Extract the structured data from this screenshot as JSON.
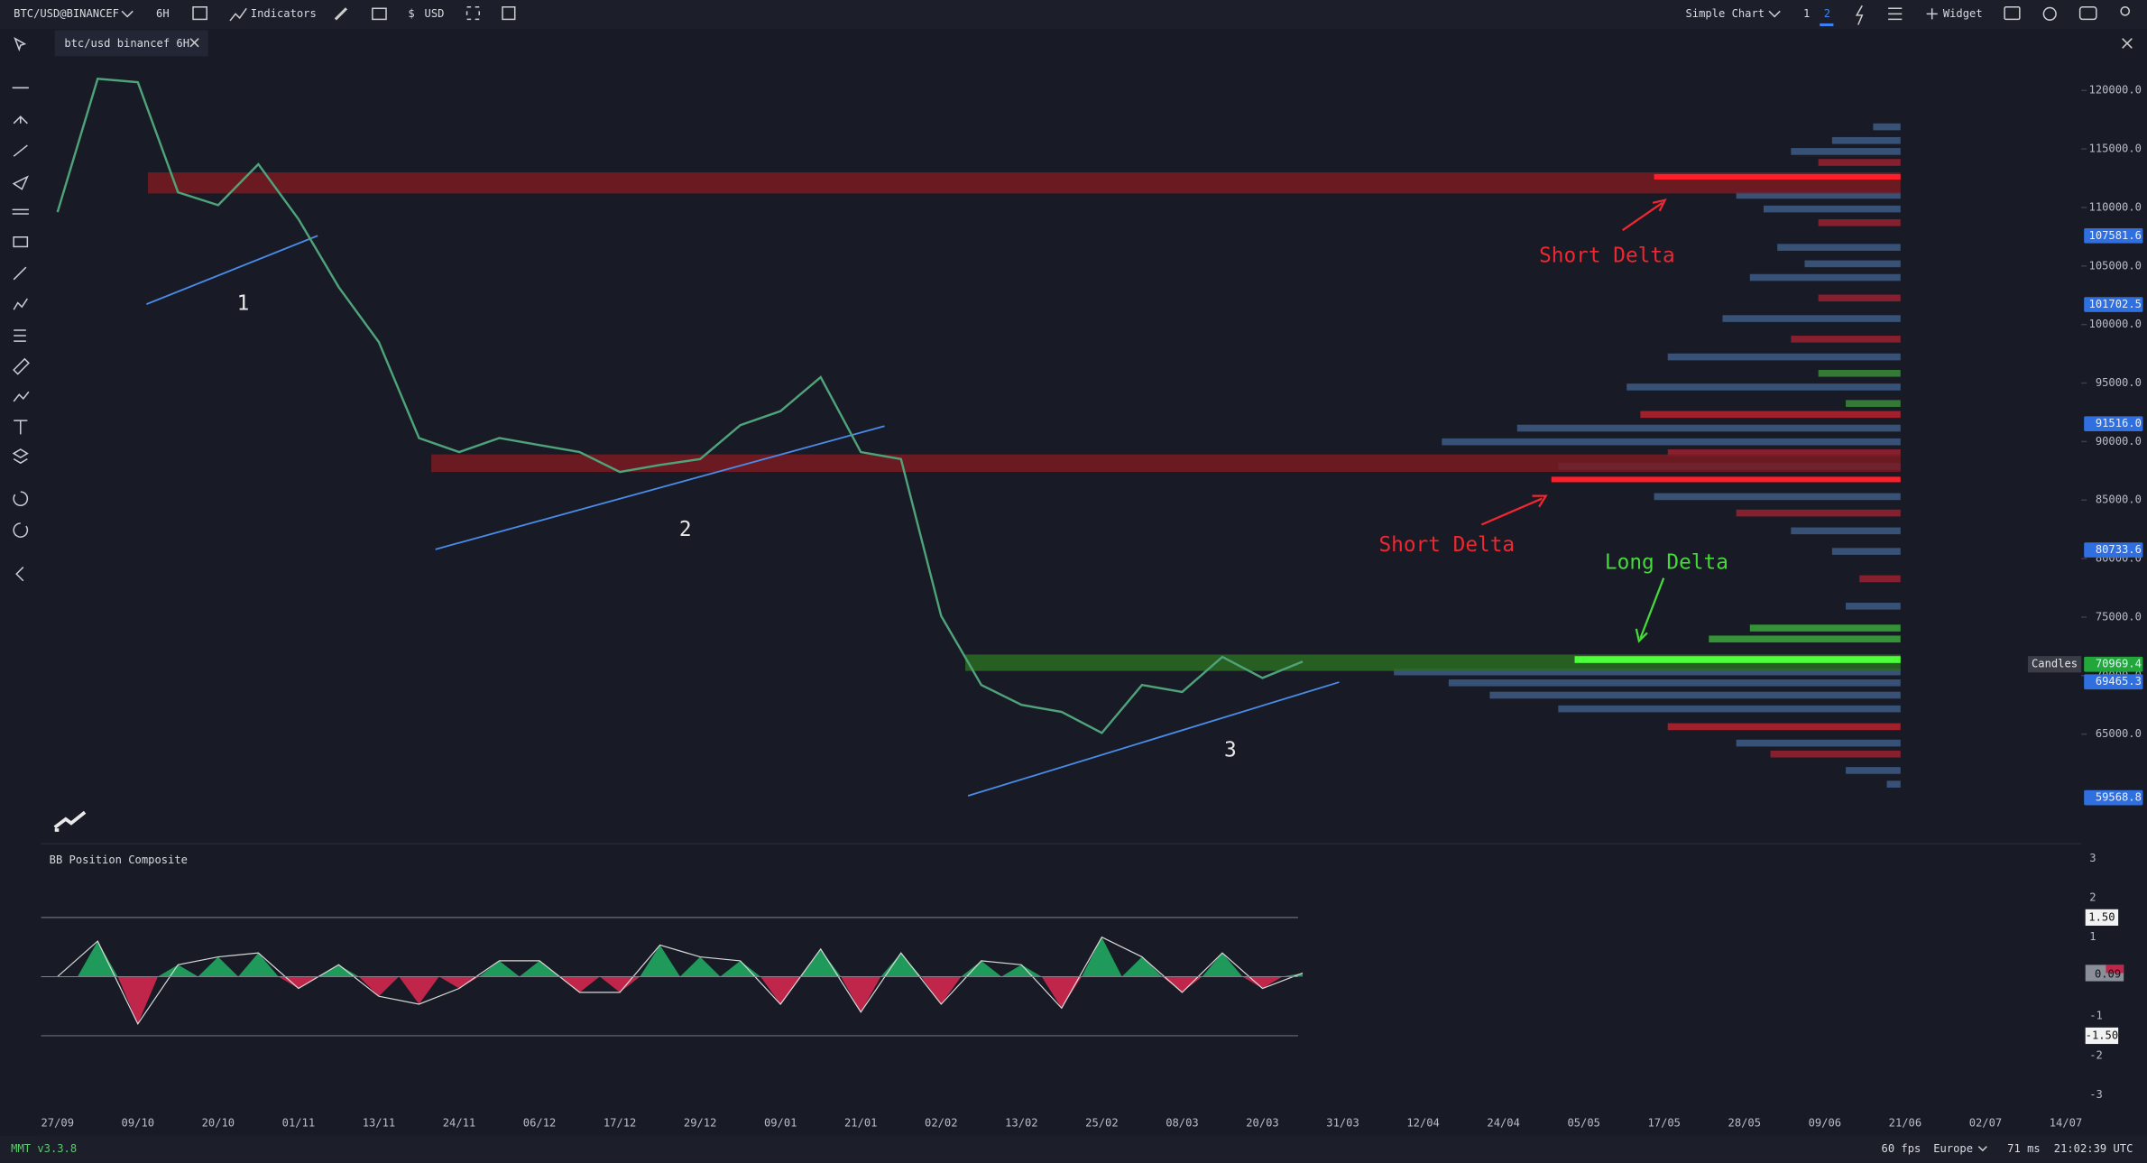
{
  "toolbar": {
    "symbol": "BTC/USD@BINANCEF",
    "interval": "6H",
    "indicators": "Indicators",
    "currency": "USD",
    "chart_type": "Simple Chart",
    "layouts": [
      "1",
      "2"
    ],
    "widget": "Widget"
  },
  "tab": "btc/usd binancef 6H",
  "status": {
    "version": "MMT v3.3.8",
    "fps": "60 fps",
    "region": "Europe",
    "latency": "71 ms",
    "clock": "21:02:39 UTC"
  },
  "chart_data": {
    "type": "line",
    "color": "#4fa37a",
    "categories": [
      "27/09",
      null,
      "09/10",
      null,
      "20/10",
      null,
      "01/11",
      null,
      "13/11",
      null,
      "24/11",
      null,
      "06/12",
      null,
      "17/12",
      null,
      "29/12",
      null,
      "09/01",
      null,
      "21/01",
      null,
      "02/02",
      null,
      "13/02",
      null,
      "25/02",
      null,
      "08/03",
      null,
      "20/03",
      null,
      "31/03",
      null,
      "12/04",
      null,
      "24/04",
      null,
      "05/05",
      null,
      "17/05",
      null,
      "28/05",
      null,
      "09/06",
      null,
      "21/06",
      null,
      "02/07",
      null,
      "14/07"
    ],
    "values": [
      109600,
      121000,
      120700,
      111300,
      110200,
      113700,
      109000,
      103200,
      98500,
      90300,
      89100,
      90300,
      89700,
      89100,
      87400,
      88000,
      88500,
      91400,
      92600,
      95500,
      89100,
      88500,
      75100,
      69200,
      67500,
      66900,
      65100,
      69200,
      68600,
      71600,
      69800,
      71200,
      null,
      null,
      null,
      null,
      null,
      null,
      null,
      null,
      null,
      null,
      null,
      null,
      null,
      null,
      null,
      null,
      null,
      null,
      null
    ],
    "ylim": [
      56100,
      122800
    ],
    "yticks": [
      {
        "value": 65000,
        "label": "65000.0"
      },
      {
        "value": 70000,
        "label": "70000.0"
      },
      {
        "value": 75000,
        "label": "75000.0"
      },
      {
        "value": 80000,
        "label": "80000.0"
      },
      {
        "value": 85000,
        "label": "85000.0"
      },
      {
        "value": 90000,
        "label": "90000.0"
      },
      {
        "value": 95000,
        "label": "95000.0"
      },
      {
        "value": 100000,
        "label": "100000.0"
      },
      {
        "value": 105000,
        "label": "105000.0"
      },
      {
        "value": 110000,
        "label": "110000.0"
      },
      {
        "value": 115000,
        "label": "115000.0"
      },
      {
        "value": 120000,
        "label": "120000.0"
      }
    ],
    "price_tags": [
      {
        "value": 107581.6,
        "color": "#2f6fe0"
      },
      {
        "value": 101702.5,
        "color": "#2f6fe0"
      },
      {
        "value": {
          "value": 91516,
          "label": "91516.0"
        },
        "color": "#2f6fe0"
      },
      {
        "value": 80733.6,
        "color": "#2f6fe0"
      },
      {
        "value": 70969.4,
        "color": "#22a83a"
      },
      {
        "value": 69465.3,
        "color": "#2f6fe0"
      },
      {
        "value": 59568.8,
        "color": "#2f6fe0"
      }
    ],
    "last_tag_label": "Candles",
    "zones": [
      {
        "low": 111200,
        "high": 113000,
        "color": "#7a1a22"
      },
      {
        "low": 87400,
        "high": 88900,
        "color": "#7a1a22"
      },
      {
        "low": 70400,
        "high": 71800,
        "color": "#2a6a22"
      }
    ],
    "trend_labels": [
      "1",
      "2",
      "3"
    ],
    "annotations": [
      "Short Delta",
      "Short Delta",
      "Long Delta"
    ]
  },
  "indicator": {
    "type": "area",
    "title": "BB Position Composite",
    "ylim": [
      -3.3,
      3.3
    ],
    "yticks": [
      3,
      2,
      1,
      0,
      -1,
      -2,
      -3
    ],
    "levels": [
      {
        "value": 1.5,
        "label": "1.50"
      },
      {
        "value": -1.5,
        "label": "-1.50"
      }
    ],
    "last": {
      "value": 0.09,
      "label": "0.09"
    },
    "pos_color": "#1f9a5a",
    "neg_color": "#c0254a",
    "values": [
      0.0,
      0.9,
      -1.2,
      0.3,
      0.5,
      0.6,
      -0.3,
      0.3,
      -0.5,
      -0.7,
      -0.3,
      0.4,
      0.4,
      -0.4,
      -0.4,
      0.8,
      0.5,
      0.4,
      -0.7,
      0.7,
      -0.9,
      0.6,
      -0.7,
      0.4,
      0.3,
      -0.8,
      1.0,
      0.5,
      -0.4,
      0.6,
      -0.3,
      0.09
    ]
  }
}
